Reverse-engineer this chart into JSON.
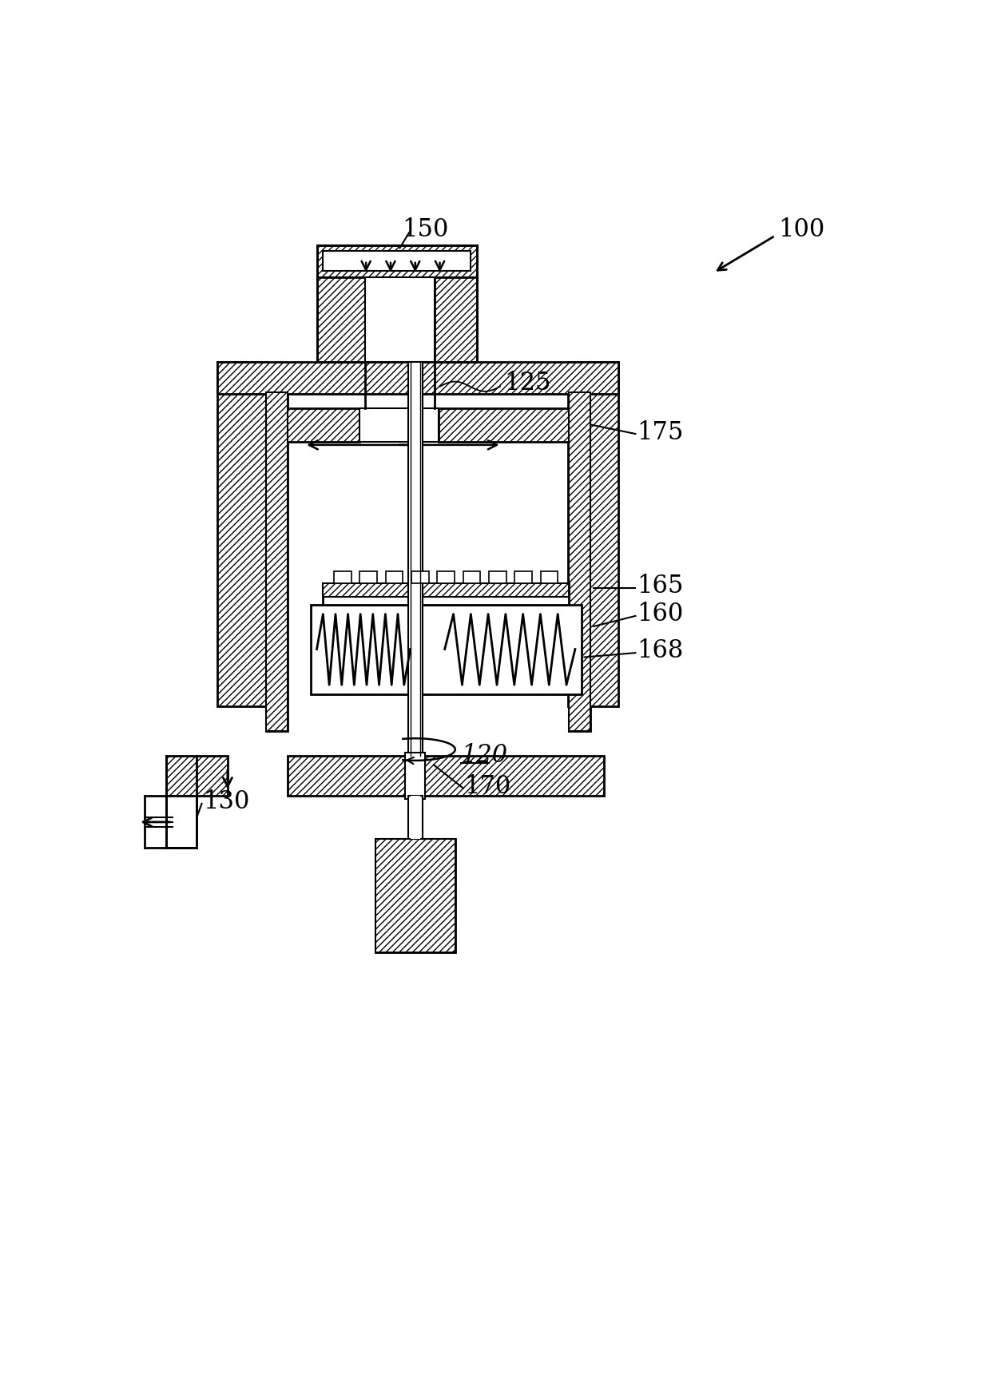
{
  "bg_color": "#ffffff",
  "line_color": "#000000",
  "fig_width": 12.38,
  "fig_height": 17.21,
  "dpi": 100
}
